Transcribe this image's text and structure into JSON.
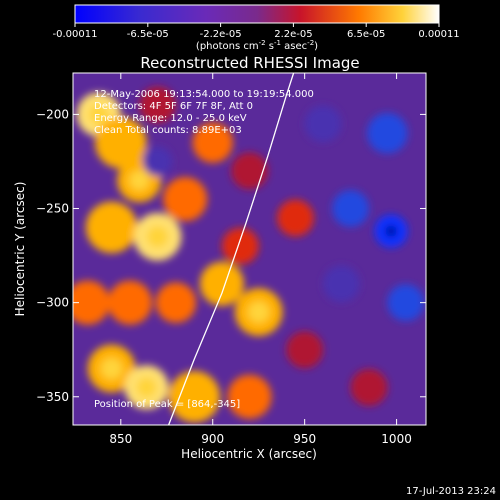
{
  "chart_data": {
    "type": "heatmap",
    "title": "Reconstructed RHESSI Image",
    "xlabel": "Heliocentric X (arcsec)",
    "ylabel": "Heliocentric Y (arcsec)",
    "xlim": [
      824,
      1016
    ],
    "ylim": [
      -365,
      -178
    ],
    "x_ticks": [
      850,
      900,
      950,
      1000
    ],
    "y_ticks": [
      -200,
      -250,
      -300,
      -350
    ],
    "colorbar": {
      "ticks": [
        "-0.00011",
        "-6.5e-05",
        "-2.2e-05",
        "2.2e-05",
        "6.5e-05",
        "0.00011"
      ],
      "min": -0.00011,
      "max": 0.00011,
      "unit_label": "(photons cm",
      "unit_sup1": "-2",
      "unit_mid": " s",
      "unit_sup2": "-1",
      "unit_end": " asec",
      "unit_sup3": "-2",
      "unit_close": ")"
    },
    "annotations": [
      "12-May-2006 19:13:54.000 to 19:19:54.000",
      "Detectors: 4F 5F 6F 7F 8F, Att 0",
      "Energy Range: 12.0 - 25.0 keV",
      "Clean    Total counts: 8.89E+03"
    ],
    "peak_label": "Position of Peak = [864,-345]",
    "peak": [
      864,
      -345
    ],
    "limb_curve": [
      [
        876,
        -365
      ],
      [
        890,
        -330
      ],
      [
        905,
        -295
      ],
      [
        918,
        -258
      ],
      [
        930,
        -222
      ],
      [
        940,
        -190
      ],
      [
        944,
        -178
      ]
    ],
    "blobs": [
      {
        "x": 838,
        "y": -200,
        "v": 1.0,
        "r": 12
      },
      {
        "x": 850,
        "y": -215,
        "v": 0.8,
        "r": 14
      },
      {
        "x": 860,
        "y": -235,
        "v": 0.9,
        "r": 12
      },
      {
        "x": 845,
        "y": -260,
        "v": 0.85,
        "r": 14
      },
      {
        "x": 870,
        "y": -265,
        "v": 1.0,
        "r": 13
      },
      {
        "x": 885,
        "y": -245,
        "v": 0.7,
        "r": 12
      },
      {
        "x": 832,
        "y": -300,
        "v": 0.75,
        "r": 12
      },
      {
        "x": 855,
        "y": -300,
        "v": 0.65,
        "r": 12
      },
      {
        "x": 880,
        "y": -300,
        "v": 0.7,
        "r": 11
      },
      {
        "x": 845,
        "y": -335,
        "v": 0.9,
        "r": 13
      },
      {
        "x": 864,
        "y": -345,
        "v": 1.0,
        "r": 12
      },
      {
        "x": 890,
        "y": -350,
        "v": 0.8,
        "r": 14
      },
      {
        "x": 920,
        "y": -350,
        "v": 0.75,
        "r": 12
      },
      {
        "x": 905,
        "y": -290,
        "v": 0.85,
        "r": 12
      },
      {
        "x": 925,
        "y": -305,
        "v": 0.9,
        "r": 13
      },
      {
        "x": 915,
        "y": -270,
        "v": 0.6,
        "r": 10
      },
      {
        "x": 900,
        "y": -215,
        "v": 0.65,
        "r": 11
      },
      {
        "x": 920,
        "y": -230,
        "v": 0.45,
        "r": 10
      },
      {
        "x": 870,
        "y": -195,
        "v": 0.45,
        "r": 10
      },
      {
        "x": 945,
        "y": -255,
        "v": 0.55,
        "r": 10
      },
      {
        "x": 950,
        "y": -325,
        "v": 0.4,
        "r": 10
      },
      {
        "x": 985,
        "y": -345,
        "v": 0.35,
        "r": 10
      },
      {
        "x": 995,
        "y": -210,
        "v": -0.8,
        "r": 11
      },
      {
        "x": 997,
        "y": -262,
        "v": -1.0,
        "r": 9
      },
      {
        "x": 975,
        "y": -250,
        "v": -0.5,
        "r": 10
      },
      {
        "x": 1005,
        "y": -300,
        "v": -0.5,
        "r": 10
      },
      {
        "x": 960,
        "y": -205,
        "v": -0.4,
        "r": 10
      },
      {
        "x": 870,
        "y": -225,
        "v": -0.3,
        "r": 8
      },
      {
        "x": 970,
        "y": -290,
        "v": -0.35,
        "r": 10
      }
    ]
  },
  "footer": {
    "timestamp": "17-Jul-2013 23:24"
  }
}
